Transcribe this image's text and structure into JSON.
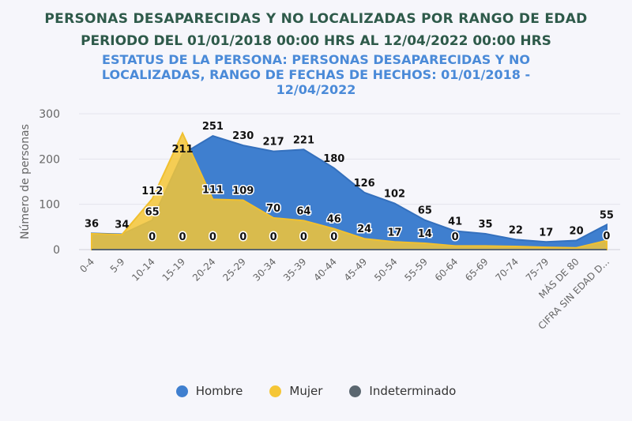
{
  "title": "PERSONAS DESAPARECIDAS Y NO LOCALIZADAS POR RANGO DE EDAD",
  "period": "PERIODO DEL 01/01/2018 00:00 HRS AL 12/04/2022 00:00 HRS",
  "subtitle": "ESTATUS DE LA PERSONA: PERSONAS DESAPARECIDAS Y NO LOCALIZADAS, RANGO DE FECHAS DE HECHOS: 01/01/2018 - 12/04/2022",
  "chart_data": {
    "type": "area",
    "ylabel": "Número de personas",
    "ylim": [
      0,
      300
    ],
    "yticks": [
      0,
      100,
      200,
      300
    ],
    "grid": true,
    "legend_position": "bottom",
    "categories": [
      "0-4",
      "5-9",
      "10-14",
      "15-19",
      "20-24",
      "25-29",
      "30-34",
      "35-39",
      "40-44",
      "45-49",
      "50-54",
      "55-59",
      "60-64",
      "65-69",
      "70-74",
      "75-79",
      "MÁS DE 80",
      "CIFRA SIN EDAD D..."
    ],
    "series": [
      {
        "name": "Hombre",
        "color": "#3f7fcf",
        "values": [
          36,
          34,
          65,
          211,
          251,
          230,
          217,
          221,
          180,
          126,
          102,
          65,
          41,
          35,
          22,
          17,
          20,
          55
        ]
      },
      {
        "name": "Mujer",
        "color": "#f5c636",
        "values": [
          35,
          33,
          112,
          257,
          111,
          109,
          70,
          64,
          46,
          24,
          17,
          14,
          8,
          8,
          7,
          5,
          4,
          20
        ]
      },
      {
        "name": "Indeterminado",
        "color": "#5b6770",
        "values": [
          0,
          0,
          0,
          0,
          0,
          0,
          0,
          0,
          0,
          0,
          0,
          0,
          0,
          0,
          0,
          0,
          0,
          0
        ]
      }
    ]
  }
}
